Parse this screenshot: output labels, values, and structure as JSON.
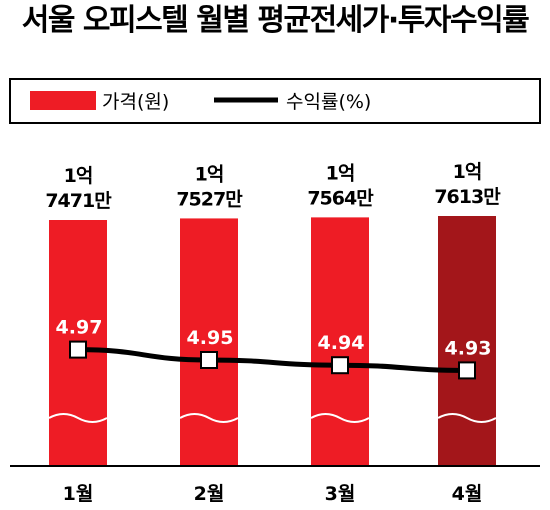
{
  "chart_data": {
    "type": "bar",
    "title": "서울 오피스텔 월별 평균전세가·투자수익률",
    "categories": [
      "1월",
      "2월",
      "3월",
      "4월"
    ],
    "series": [
      {
        "name": "가격(원)",
        "type": "bar",
        "values": [
          174710000,
          175270000,
          175640000,
          176130000
        ],
        "labels": [
          [
            "1억",
            "7471만"
          ],
          [
            "1억",
            "7527만"
          ],
          [
            "1억",
            "7564만"
          ],
          [
            "1억",
            "7613만"
          ]
        ],
        "colors": [
          "#ee1c25",
          "#ee1c25",
          "#ee1c25",
          "#a3161a"
        ]
      },
      {
        "name": "수익률(%)",
        "type": "line",
        "values": [
          4.97,
          4.95,
          4.94,
          4.93
        ],
        "labels": [
          "4.97",
          "4.95",
          "4.94",
          "4.93"
        ],
        "color": "#000000"
      }
    ],
    "legend_position": "top-left",
    "grid": false
  }
}
